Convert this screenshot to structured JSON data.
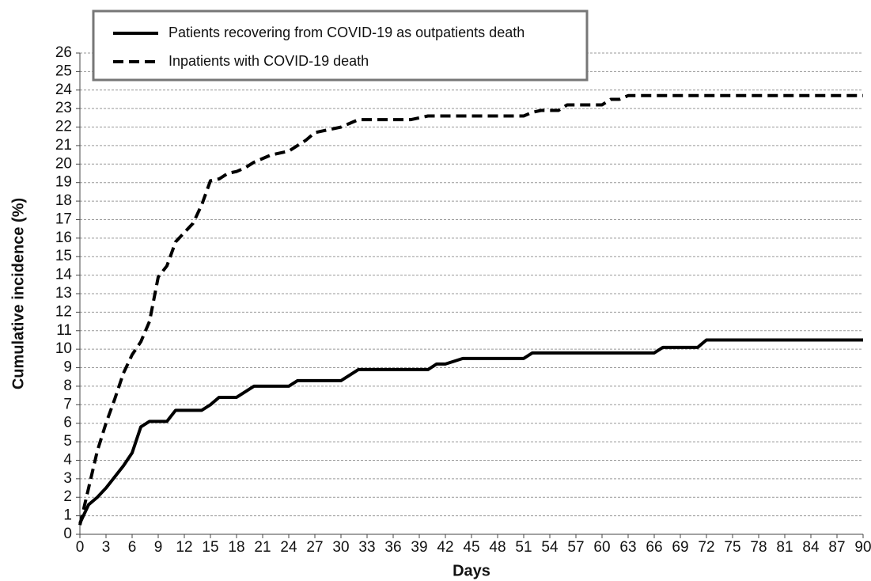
{
  "chart_data": {
    "type": "line",
    "x_label": "Days",
    "y_label": "Cumulative incidence (%)",
    "x": [
      0,
      1,
      2,
      3,
      4,
      5,
      6,
      7,
      8,
      9,
      10,
      11,
      12,
      13,
      14,
      15,
      16,
      17,
      18,
      19,
      20,
      22,
      24,
      25,
      26,
      27,
      28,
      30,
      31,
      32,
      35,
      38,
      40,
      41,
      42,
      44,
      45,
      50,
      51,
      52,
      53,
      55,
      56,
      57,
      60,
      61,
      62,
      63,
      66,
      67,
      71,
      72,
      80,
      90
    ],
    "series": [
      {
        "name": "Patients recovering from COVID-19 as outpatients death",
        "color": "#000000",
        "line_style": "solid",
        "values": [
          0.6,
          1.6,
          2.0,
          2.5,
          3.1,
          3.7,
          4.4,
          5.8,
          6.1,
          6.1,
          6.1,
          6.7,
          6.7,
          6.7,
          6.7,
          7.0,
          7.4,
          7.4,
          7.4,
          7.7,
          8.0,
          8.0,
          8.0,
          8.3,
          8.3,
          8.3,
          8.3,
          8.3,
          8.6,
          8.9,
          8.9,
          8.9,
          8.9,
          9.2,
          9.2,
          9.5,
          9.5,
          9.5,
          9.5,
          9.8,
          9.8,
          9.8,
          9.8,
          9.8,
          9.8,
          9.8,
          9.8,
          9.8,
          9.8,
          10.1,
          10.1,
          10.5,
          10.5,
          10.5
        ]
      },
      {
        "name": "Inpatients with COVID-19 death",
        "color": "#000000",
        "line_style": "dashed",
        "values": [
          0.5,
          2.5,
          4.5,
          6.0,
          7.3,
          8.7,
          9.7,
          10.4,
          11.5,
          13.9,
          14.5,
          15.8,
          16.3,
          16.8,
          17.8,
          19.1,
          19.2,
          19.5,
          19.6,
          19.8,
          20.1,
          20.5,
          20.7,
          21.0,
          21.3,
          21.7,
          21.8,
          22.0,
          22.2,
          22.4,
          22.4,
          22.4,
          22.6,
          22.6,
          22.6,
          22.6,
          22.6,
          22.6,
          22.6,
          22.8,
          22.9,
          22.9,
          23.2,
          23.2,
          23.2,
          23.5,
          23.5,
          23.7,
          23.7,
          23.7,
          23.7,
          23.7,
          23.7,
          23.7
        ]
      }
    ],
    "xlim": [
      0,
      90
    ],
    "xticks": [
      0,
      3,
      6,
      9,
      12,
      15,
      18,
      21,
      24,
      27,
      30,
      33,
      36,
      39,
      42,
      45,
      48,
      51,
      54,
      57,
      60,
      63,
      66,
      69,
      72,
      75,
      78,
      81,
      84,
      87,
      90
    ],
    "ylim": [
      0,
      26
    ],
    "yticks": [
      0,
      1,
      2,
      3,
      4,
      5,
      6,
      7,
      8,
      9,
      10,
      11,
      12,
      13,
      14,
      15,
      16,
      17,
      18,
      19,
      20,
      21,
      22,
      23,
      24,
      25,
      26
    ],
    "grid": true,
    "legend": "top-left"
  }
}
